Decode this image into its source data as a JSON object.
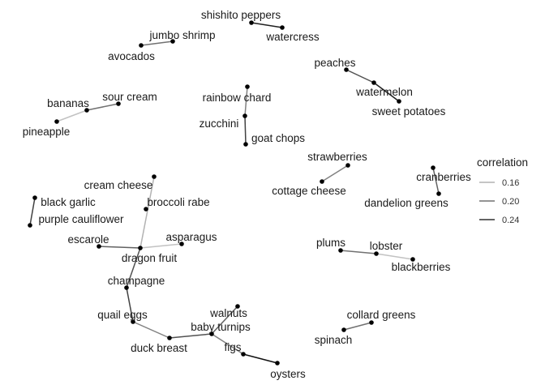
{
  "chart_data": {
    "type": "network",
    "title": "",
    "nodes": [
      {
        "id": "shishito peppers"
      },
      {
        "id": "watercress"
      },
      {
        "id": "jumbo shrimp"
      },
      {
        "id": "avocados"
      },
      {
        "id": "peaches"
      },
      {
        "id": "watermelon"
      },
      {
        "id": "sweet potatoes"
      },
      {
        "id": "bananas"
      },
      {
        "id": "sour cream"
      },
      {
        "id": "pineapple"
      },
      {
        "id": "rainbow chard"
      },
      {
        "id": "zucchini"
      },
      {
        "id": "goat chops"
      },
      {
        "id": "strawberries"
      },
      {
        "id": "cottage cheese"
      },
      {
        "id": "cranberries"
      },
      {
        "id": "dandelion greens"
      },
      {
        "id": "cream cheese"
      },
      {
        "id": "broccoli rabe"
      },
      {
        "id": "black garlic"
      },
      {
        "id": "purple cauliflower"
      },
      {
        "id": "escarole"
      },
      {
        "id": "asparagus"
      },
      {
        "id": "dragon fruit"
      },
      {
        "id": "champagne"
      },
      {
        "id": "quail eggs"
      },
      {
        "id": "duck breast"
      },
      {
        "id": "baby turnips"
      },
      {
        "id": "walnuts"
      },
      {
        "id": "figs"
      },
      {
        "id": "oysters"
      },
      {
        "id": "plums"
      },
      {
        "id": "lobster"
      },
      {
        "id": "blackberries"
      },
      {
        "id": "collard greens"
      },
      {
        "id": "spinach"
      }
    ],
    "edges": [
      {
        "source": "shishito peppers",
        "target": "watercress",
        "correlation": 0.25
      },
      {
        "source": "jumbo shrimp",
        "target": "avocados",
        "correlation": 0.2
      },
      {
        "source": "peaches",
        "target": "watermelon",
        "correlation": 0.22
      },
      {
        "source": "watermelon",
        "target": "sweet potatoes",
        "correlation": 0.25
      },
      {
        "source": "bananas",
        "target": "sour cream",
        "correlation": 0.2
      },
      {
        "source": "bananas",
        "target": "pineapple",
        "correlation": 0.15
      },
      {
        "source": "rainbow chard",
        "target": "zucchini",
        "correlation": 0.19
      },
      {
        "source": "zucchini",
        "target": "goat chops",
        "correlation": 0.23
      },
      {
        "source": "strawberries",
        "target": "cottage cheese",
        "correlation": 0.19
      },
      {
        "source": "cranberries",
        "target": "dandelion greens",
        "correlation": 0.21
      },
      {
        "source": "black garlic",
        "target": "purple cauliflower",
        "correlation": 0.23
      },
      {
        "source": "cream cheese",
        "target": "dragon fruit",
        "correlation": 0.16
      },
      {
        "source": "escarole",
        "target": "dragon fruit",
        "correlation": 0.21
      },
      {
        "source": "asparagus",
        "target": "dragon fruit",
        "correlation": 0.15
      },
      {
        "source": "dragon fruit",
        "target": "champagne",
        "correlation": 0.22
      },
      {
        "source": "champagne",
        "target": "quail eggs",
        "correlation": 0.23
      },
      {
        "source": "quail eggs",
        "target": "duck breast",
        "correlation": 0.19
      },
      {
        "source": "duck breast",
        "target": "baby turnips",
        "correlation": 0.22
      },
      {
        "source": "baby turnips",
        "target": "walnuts",
        "correlation": 0.21
      },
      {
        "source": "baby turnips",
        "target": "figs",
        "correlation": 0.19
      },
      {
        "source": "figs",
        "target": "oysters",
        "correlation": 0.26
      },
      {
        "source": "plums",
        "target": "lobster",
        "correlation": 0.2
      },
      {
        "source": "lobster",
        "target": "blackberries",
        "correlation": 0.15
      },
      {
        "source": "collard greens",
        "target": "spinach",
        "correlation": 0.2
      }
    ],
    "legend": {
      "title": "correlation",
      "items": [
        {
          "label": "0.16",
          "value": 0.16
        },
        {
          "label": "0.20",
          "value": 0.2
        },
        {
          "label": "0.24",
          "value": 0.24
        }
      ],
      "placement": "right"
    },
    "colors": {
      "edge_low": "#cfcfcf",
      "edge_high": "#000000",
      "node": "#000000",
      "text": "#1a1a1a"
    }
  }
}
